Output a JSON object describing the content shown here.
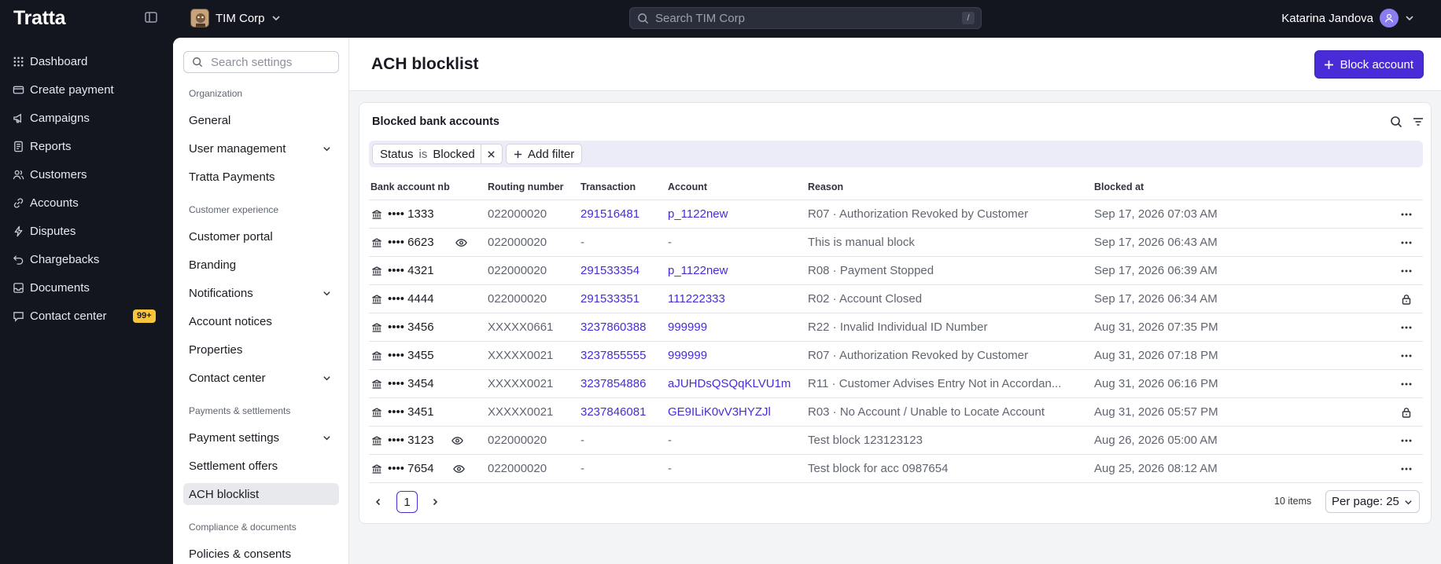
{
  "app": {
    "brand": "Tratta",
    "org_name": "TIM Corp",
    "search_placeholder": "Search TIM Corp",
    "search_shortcut": "/",
    "user_name": "Katarina Jandova"
  },
  "nav": {
    "items": [
      {
        "label": "Dashboard",
        "icon": "grid-icon"
      },
      {
        "label": "Create payment",
        "icon": "credit-card-icon"
      },
      {
        "label": "Campaigns",
        "icon": "megaphone-icon"
      },
      {
        "label": "Reports",
        "icon": "report-icon"
      },
      {
        "label": "Customers",
        "icon": "users-icon"
      },
      {
        "label": "Accounts",
        "icon": "link-icon"
      },
      {
        "label": "Disputes",
        "icon": "bolt-icon"
      },
      {
        "label": "Chargebacks",
        "icon": "undo-icon"
      },
      {
        "label": "Documents",
        "icon": "inbox-icon"
      },
      {
        "label": "Contact center",
        "icon": "chat-icon",
        "badge": "99+"
      }
    ]
  },
  "settings_nav": {
    "search_placeholder": "Search settings",
    "groups": [
      {
        "title": "Organization",
        "items": [
          {
            "label": "General",
            "expandable": false
          },
          {
            "label": "User management",
            "expandable": true
          },
          {
            "label": "Tratta Payments",
            "expandable": false
          }
        ]
      },
      {
        "title": "Customer experience",
        "items": [
          {
            "label": "Customer portal",
            "expandable": false
          },
          {
            "label": "Branding",
            "expandable": false
          },
          {
            "label": "Notifications",
            "expandable": true
          },
          {
            "label": "Account notices",
            "expandable": false
          },
          {
            "label": "Properties",
            "expandable": false
          },
          {
            "label": "Contact center",
            "expandable": true
          }
        ]
      },
      {
        "title": "Payments & settlements",
        "items": [
          {
            "label": "Payment settings",
            "expandable": true
          },
          {
            "label": "Settlement offers",
            "expandable": false
          },
          {
            "label": "ACH blocklist",
            "expandable": false,
            "active": true
          }
        ]
      },
      {
        "title": "Compliance & documents",
        "items": [
          {
            "label": "Policies & consents",
            "expandable": false
          }
        ]
      }
    ]
  },
  "page": {
    "title": "ACH blocklist",
    "primary_action": "Block account"
  },
  "card": {
    "title": "Blocked bank accounts",
    "filter": {
      "field": "Status",
      "operator": "is",
      "value": "Blocked"
    },
    "add_filter_label": "Add filter"
  },
  "table": {
    "columns": [
      "Bank account nb",
      "Routing number",
      "Transaction",
      "Account",
      "Reason",
      "Blocked at"
    ],
    "rows": [
      {
        "bank": "•••• 1333",
        "routing": "022000020",
        "transaction": "291516481",
        "account": "p_1122new",
        "reason": "R07 · Authorization Revoked by Customer",
        "blocked_at": "Sep 17, 2026 07:03 AM",
        "eye": false,
        "action": "more"
      },
      {
        "bank": "•••• 6623",
        "routing": "022000020",
        "transaction": "-",
        "account": "-",
        "reason": "This is manual block",
        "blocked_at": "Sep 17, 2026 06:43 AM",
        "eye": true,
        "action": "more"
      },
      {
        "bank": "•••• 4321",
        "routing": "022000020",
        "transaction": "291533354",
        "account": "p_1122new",
        "reason": "R08 · Payment Stopped",
        "blocked_at": "Sep 17, 2026 06:39 AM",
        "eye": false,
        "action": "more"
      },
      {
        "bank": "•••• 4444",
        "routing": "022000020",
        "transaction": "291533351",
        "account": "111222333",
        "reason": "R02 · Account Closed",
        "blocked_at": "Sep 17, 2026 06:34 AM",
        "eye": false,
        "action": "lock"
      },
      {
        "bank": "•••• 3456",
        "routing": "XXXXX0661",
        "transaction": "3237860388",
        "account": "999999",
        "reason": "R22 · Invalid Individual ID Number",
        "blocked_at": "Aug 31, 2026 07:35 PM",
        "eye": false,
        "action": "more"
      },
      {
        "bank": "•••• 3455",
        "routing": "XXXXX0021",
        "transaction": "3237855555",
        "account": "999999",
        "reason": "R07 · Authorization Revoked by Customer",
        "blocked_at": "Aug 31, 2026 07:18 PM",
        "eye": false,
        "action": "more"
      },
      {
        "bank": "•••• 3454",
        "routing": "XXXXX0021",
        "transaction": "3237854886",
        "account": "aJUHDsQSQqKLVU1m",
        "reason": "R11 · Customer Advises Entry Not in Accordan...",
        "blocked_at": "Aug 31, 2026 06:16 PM",
        "eye": false,
        "action": "more"
      },
      {
        "bank": "•••• 3451",
        "routing": "XXXXX0021",
        "transaction": "3237846081",
        "account": "GE9ILiK0vV3HYZJl",
        "reason": "R03 · No Account / Unable to Locate Account",
        "blocked_at": "Aug 31, 2026 05:57 PM",
        "eye": false,
        "action": "lock"
      },
      {
        "bank": "•••• 3123",
        "routing": "022000020",
        "transaction": "-",
        "account": "-",
        "reason": "Test block 123123123",
        "blocked_at": "Aug 26, 2026 05:00 AM",
        "eye": true,
        "action": "more"
      },
      {
        "bank": "•••• 7654",
        "routing": "022000020",
        "transaction": "-",
        "account": "-",
        "reason": "Test block for acc 0987654",
        "blocked_at": "Aug 25, 2026 08:12 AM",
        "eye": true,
        "action": "more"
      }
    ]
  },
  "pagination": {
    "current_page": "1",
    "items_count": "10 items",
    "per_page": "Per page: 25"
  },
  "colors": {
    "accent": "#4a2bd8",
    "sidebar_bg": "#13161f",
    "badge": "#f8c53a",
    "filter_bar": "#ecebf8"
  }
}
